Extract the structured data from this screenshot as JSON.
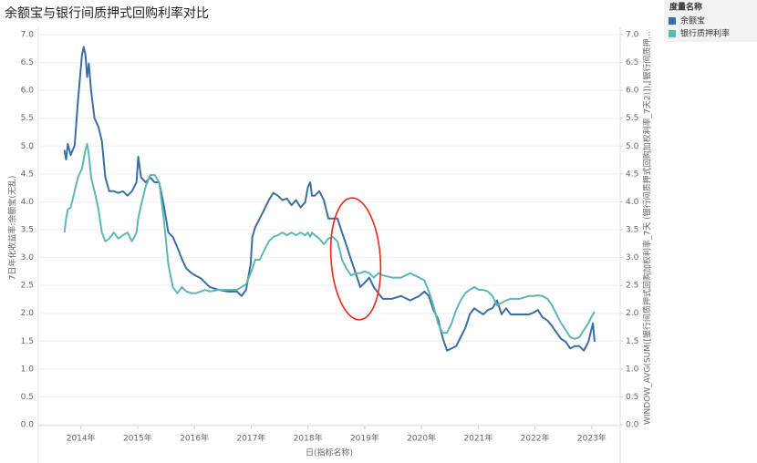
{
  "chart_data": {
    "type": "line",
    "title": "余额宝与银行间质押式回购利率对比",
    "x_label": "日(指标名称)",
    "y_label": "7日年化收益率:余额宝(无乱)",
    "y2_label": "WINDOW_AVG(SUM([银行间质押式回购加权利率_7天 (银行间质押式回购加权利率_7天2)]),[银行间质押...",
    "legend_title": "度量名称",
    "legend_position": "right",
    "grid": true,
    "xlim": [
      2013.25,
      2023.5
    ],
    "xticks": [
      {
        "value": 2014,
        "label": "2014年"
      },
      {
        "value": 2015,
        "label": "2015年"
      },
      {
        "value": 2016,
        "label": "2016年"
      },
      {
        "value": 2017,
        "label": "2017年"
      },
      {
        "value": 2018,
        "label": "2018年"
      },
      {
        "value": 2019,
        "label": "2019年"
      },
      {
        "value": 2020,
        "label": "2020年"
      },
      {
        "value": 2021,
        "label": "2021年"
      },
      {
        "value": 2022,
        "label": "2022年"
      },
      {
        "value": 2023,
        "label": "2023年"
      }
    ],
    "ylim": [
      0,
      7
    ],
    "yticks": [
      {
        "value": 0,
        "label": "0.0"
      },
      0.5,
      {
        "value": 1,
        "label": "1.0"
      },
      1.5,
      {
        "value": 2,
        "label": "2.0"
      },
      2.5,
      {
        "value": 3,
        "label": "3.0"
      },
      3.5,
      {
        "value": 4,
        "label": "4.0"
      },
      4.5,
      {
        "value": 5,
        "label": "5.0"
      },
      5.5,
      {
        "value": 6,
        "label": "6.0"
      },
      6.5,
      {
        "value": 7,
        "label": "7.0"
      }
    ],
    "y2lim": [
      0,
      7
    ],
    "y2ticks": [
      {
        "value": 0,
        "label": "0.0"
      },
      0.5,
      {
        "value": 1,
        "label": "1.0"
      },
      1.5,
      {
        "value": 2,
        "label": "2.0"
      },
      2.5,
      {
        "value": 3,
        "label": "3.0"
      },
      3.5,
      {
        "value": 4,
        "label": "4.0"
      },
      4.5,
      {
        "value": 5,
        "label": "5.0"
      },
      5.5,
      {
        "value": 6,
        "label": "6.0"
      },
      6.5,
      {
        "value": 7,
        "label": "7.0"
      }
    ],
    "x": [
      2013.71,
      2013.74,
      2013.77,
      2013.82,
      2013.89,
      2013.95,
      2014.02,
      2014.05,
      2014.08,
      2014.11,
      2014.14,
      2014.18,
      2014.24,
      2014.31,
      2014.37,
      2014.43,
      2014.5,
      2014.58,
      2014.66,
      2014.74,
      2014.82,
      2014.9,
      2014.98,
      2015.01,
      2015.06,
      2015.14,
      2015.22,
      2015.3,
      2015.38,
      2015.46,
      2015.54,
      2015.62,
      2015.7,
      2015.78,
      2015.86,
      2015.95,
      2016.03,
      2016.11,
      2016.19,
      2016.27,
      2016.43,
      2016.59,
      2016.75,
      2016.83,
      2016.91,
      2016.99,
      2017.02,
      2017.07,
      2017.15,
      2017.23,
      2017.31,
      2017.39,
      2017.47,
      2017.55,
      2017.63,
      2017.71,
      2017.79,
      2017.87,
      2017.95,
      2018.0,
      2018.04,
      2018.07,
      2018.12,
      2018.2,
      2018.28,
      2018.36,
      2018.44,
      2018.52,
      2018.6,
      2018.68,
      2018.76,
      2018.84,
      2018.92,
      2019.0,
      2019.08,
      2019.16,
      2019.24,
      2019.32,
      2019.48,
      2019.64,
      2019.8,
      2019.96,
      2020.05,
      2020.13,
      2020.21,
      2020.29,
      2020.37,
      2020.45,
      2020.53,
      2020.61,
      2020.69,
      2020.77,
      2020.85,
      2020.93,
      2021.01,
      2021.09,
      2021.17,
      2021.25,
      2021.33,
      2021.41,
      2021.49,
      2021.57,
      2021.73,
      2021.89,
      2021.97,
      2022.05,
      2022.13,
      2022.22,
      2022.3,
      2022.38,
      2022.46,
      2022.54,
      2022.62,
      2022.7,
      2022.78,
      2022.86,
      2022.94,
      2022.99,
      2023.02,
      2023.05
    ],
    "series": [
      {
        "name": "余额宝",
        "color": "#3b6ea5",
        "values": [
          4.93,
          4.76,
          5.04,
          4.84,
          5.01,
          5.83,
          6.64,
          6.78,
          6.64,
          6.24,
          6.48,
          5.99,
          5.5,
          5.34,
          5.09,
          4.44,
          4.19,
          4.19,
          4.16,
          4.19,
          4.11,
          4.19,
          4.35,
          4.81,
          4.44,
          4.35,
          4.44,
          4.35,
          4.35,
          3.94,
          3.45,
          3.37,
          3.18,
          2.97,
          2.8,
          2.72,
          2.67,
          2.63,
          2.55,
          2.47,
          2.42,
          2.39,
          2.39,
          2.31,
          2.42,
          2.88,
          3.37,
          3.54,
          3.7,
          3.86,
          4.03,
          4.16,
          4.11,
          4.03,
          4.06,
          3.94,
          4.03,
          3.9,
          3.99,
          4.27,
          4.35,
          4.11,
          4.11,
          4.19,
          4.03,
          3.7,
          3.7,
          3.7,
          3.45,
          3.21,
          2.96,
          2.72,
          2.47,
          2.55,
          2.64,
          2.47,
          2.36,
          2.26,
          2.26,
          2.31,
          2.23,
          2.31,
          2.39,
          2.31,
          2.06,
          1.9,
          1.57,
          1.33,
          1.37,
          1.41,
          1.57,
          1.73,
          1.98,
          2.09,
          2.03,
          1.98,
          2.06,
          2.09,
          2.23,
          1.98,
          2.09,
          1.98,
          1.98,
          1.98,
          2.01,
          2.06,
          1.93,
          1.87,
          1.77,
          1.65,
          1.54,
          1.49,
          1.37,
          1.41,
          1.41,
          1.33,
          1.49,
          1.7,
          1.82,
          1.49
        ]
      },
      {
        "name": "银行质押利率",
        "color": "#5fb7b2",
        "axis": "y2",
        "values": [
          3.45,
          3.7,
          3.86,
          3.9,
          4.19,
          4.44,
          4.6,
          4.76,
          4.93,
          5.04,
          4.85,
          4.44,
          4.19,
          3.86,
          3.45,
          3.29,
          3.34,
          3.45,
          3.34,
          3.4,
          3.45,
          3.29,
          3.45,
          3.7,
          3.94,
          4.27,
          4.48,
          4.48,
          4.35,
          3.7,
          2.88,
          2.47,
          2.36,
          2.47,
          2.39,
          2.36,
          2.36,
          2.39,
          2.42,
          2.39,
          2.42,
          2.42,
          2.42,
          2.47,
          2.52,
          2.72,
          2.8,
          2.96,
          2.96,
          3.13,
          3.29,
          3.37,
          3.4,
          3.45,
          3.4,
          3.45,
          3.4,
          3.45,
          3.4,
          3.45,
          3.37,
          3.45,
          3.4,
          3.34,
          3.24,
          3.34,
          3.37,
          3.29,
          2.96,
          2.8,
          2.68,
          2.72,
          2.72,
          2.75,
          2.72,
          2.64,
          2.72,
          2.68,
          2.64,
          2.64,
          2.72,
          2.64,
          2.59,
          2.39,
          2.14,
          1.82,
          1.65,
          1.65,
          1.82,
          2.06,
          2.23,
          2.36,
          2.42,
          2.47,
          2.42,
          2.42,
          2.39,
          2.31,
          2.14,
          2.19,
          2.23,
          2.26,
          2.26,
          2.31,
          2.31,
          2.32,
          2.31,
          2.26,
          2.14,
          1.98,
          1.82,
          1.7,
          1.57,
          1.54,
          1.57,
          1.7,
          1.82,
          1.93,
          1.98,
          2.03
        ]
      }
    ]
  }
}
